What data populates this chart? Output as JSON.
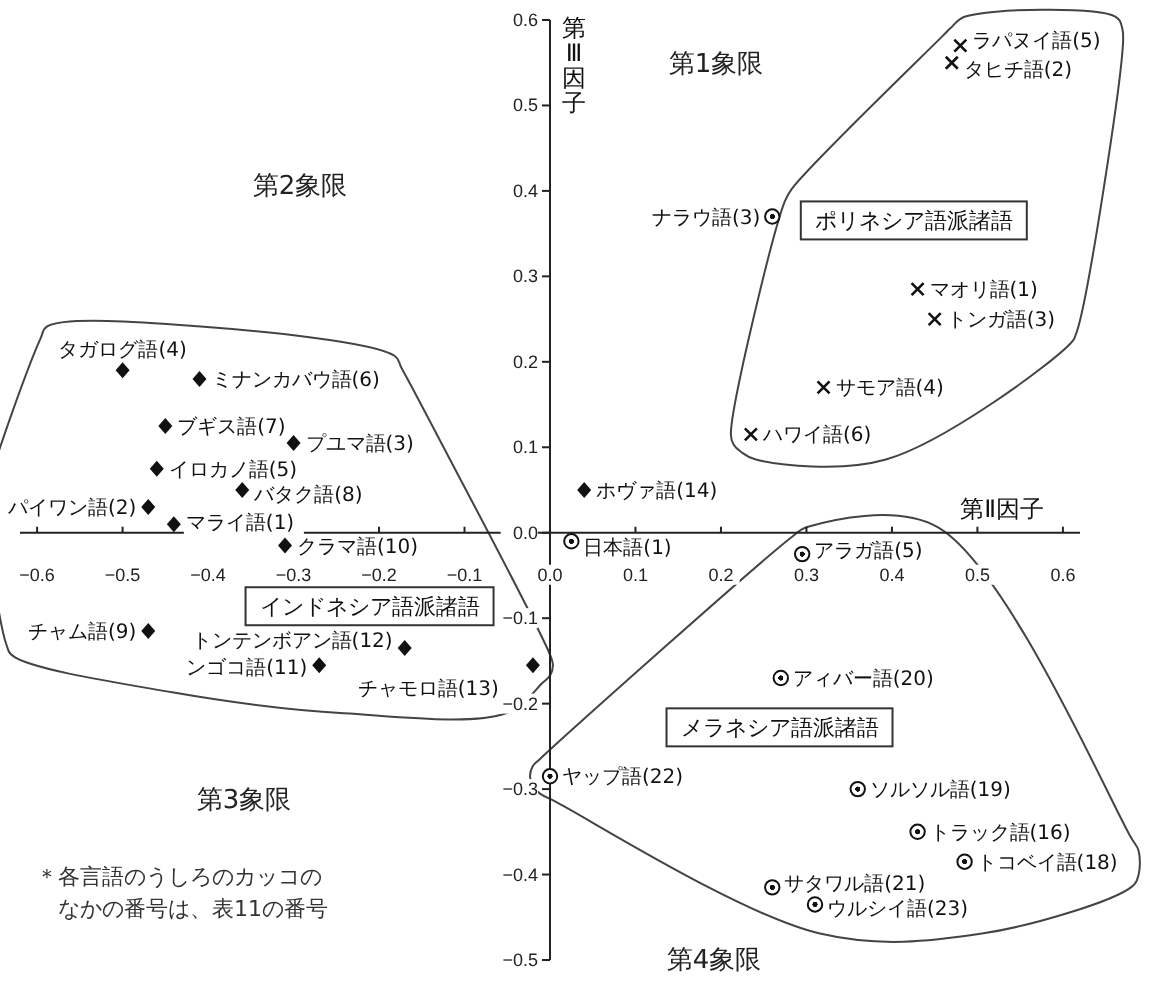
{
  "chart_data": {
    "type": "scatter",
    "xlabel": "第Ⅱ因子",
    "ylabel": "第Ⅲ因子",
    "xlim": [
      -0.62,
      0.62
    ],
    "ylim": [
      -0.5,
      0.6
    ],
    "xticks": [
      {
        "value": -0.6,
        "label": "−0.6"
      },
      {
        "value": -0.5,
        "label": "−0.5"
      },
      {
        "value": -0.4,
        "label": "−0.4"
      },
      {
        "value": -0.3,
        "label": "−0.3"
      },
      {
        "value": -0.2,
        "label": "−0.2"
      },
      {
        "value": -0.1,
        "label": "−0.1"
      },
      {
        "value": 0,
        "label": "0.0"
      },
      0.1,
      0.2,
      0.3,
      0.4,
      0.5,
      0.6
    ],
    "yticks": [
      {
        "value": -0.5,
        "label": "−0.5"
      },
      {
        "value": -0.4,
        "label": "−0.4"
      },
      {
        "value": -0.3,
        "label": "−0.3"
      },
      {
        "value": -0.2,
        "label": "−0.2"
      },
      {
        "value": -0.1,
        "label": "−0.1"
      },
      {
        "value": 0,
        "label": "0.0"
      },
      0.1,
      0.2,
      0.3,
      0.4,
      0.5,
      0.6
    ],
    "series": [
      {
        "name": "インドネシア語派諸語",
        "color": "#111111",
        "marker": "diamond",
        "x": [
          -0.5,
          -0.41,
          -0.45,
          -0.3,
          -0.46,
          -0.36,
          -0.47,
          -0.44,
          -0.31,
          -0.47,
          -0.27,
          -0.17,
          -0.02
        ],
        "values": [
          0.19,
          0.18,
          0.125,
          0.105,
          0.075,
          0.05,
          0.03,
          0.01,
          -0.015,
          -0.115,
          -0.155,
          -0.135,
          -0.155
        ]
      },
      {
        "name": "ポリネシア語派諸語",
        "color": "#111111",
        "marker": "cross",
        "x": [
          0.48,
          0.47,
          0.43,
          0.45,
          0.32,
          0.235
        ],
        "values": [
          0.57,
          0.55,
          0.285,
          0.25,
          0.17,
          0.115
        ]
      },
      {
        "name": "メラネシア語派諸語",
        "color": "#111111",
        "marker": "circle",
        "x": [
          0.295,
          0.27,
          0,
          0.36,
          0.43,
          0.485,
          0.26,
          0.31
        ],
        "values": [
          -0.025,
          -0.17,
          -0.285,
          -0.3,
          -0.35,
          -0.385,
          -0.415,
          -0.435
        ]
      },
      {
        "color": "#111111",
        "marker": "diamond",
        "x": [
          0.04
        ],
        "values": [
          0.05
        ]
      },
      {
        "color": "#111111",
        "marker": "circle",
        "x": [
          0.26,
          0.025
        ],
        "values": [
          0.37,
          -0.01
        ]
      }
    ],
    "annotations": [
      {
        "text": "タガログ語(4)",
        "x": -0.5,
        "y": 0.19
      },
      {
        "text": "ミナンカバウ語(6)",
        "x": -0.41,
        "y": 0.18
      },
      {
        "text": "ブギス語(7)",
        "x": -0.45,
        "y": 0.125
      },
      {
        "text": "プユマ語(3)",
        "x": -0.3,
        "y": 0.105
      },
      {
        "text": "イロカノ語(5)",
        "x": -0.46,
        "y": 0.075
      },
      {
        "text": "バタク語(8)",
        "x": -0.36,
        "y": 0.05
      },
      {
        "text": "パイワン語(2)",
        "x": -0.47,
        "y": 0.03
      },
      {
        "text": "マライ語(1)",
        "x": -0.44,
        "y": 0.01
      },
      {
        "text": "クラマ語(10)",
        "x": -0.31,
        "y": -0.015
      },
      {
        "text": "チャム語(9)",
        "x": -0.47,
        "y": -0.115
      },
      {
        "text": "ンゴコ語(11)",
        "x": -0.27,
        "y": -0.155
      },
      {
        "text": "トンテンボアン語(12)",
        "x": -0.17,
        "y": -0.135
      },
      {
        "text": "チャモロ語(13)",
        "x": -0.02,
        "y": -0.155
      },
      {
        "text": "ホヴァ語(14)",
        "x": 0.04,
        "y": 0.05
      },
      {
        "text": "ラパヌイ語(5)",
        "x": 0.48,
        "y": 0.57
      },
      {
        "text": "タヒチ語(2)",
        "x": 0.47,
        "y": 0.55
      },
      {
        "text": "マオリ語(1)",
        "x": 0.43,
        "y": 0.285
      },
      {
        "text": "トンガ語(3)",
        "x": 0.45,
        "y": 0.25
      },
      {
        "text": "サモア語(4)",
        "x": 0.32,
        "y": 0.17
      },
      {
        "text": "ハワイ語(6)",
        "x": 0.235,
        "y": 0.115
      },
      {
        "text": "ナラウ語(3)",
        "x": 0.26,
        "y": 0.37
      },
      {
        "text": "アラガ語(5)",
        "x": 0.295,
        "y": -0.025
      },
      {
        "text": "アィバー語(20)",
        "x": 0.27,
        "y": -0.17
      },
      {
        "text": "ヤップ語(22)",
        "x": 0,
        "y": -0.285
      },
      {
        "text": "ソルソル語(19)",
        "x": 0.36,
        "y": -0.3
      },
      {
        "text": "トラック語(16)",
        "x": 0.43,
        "y": -0.35
      },
      {
        "text": "トコベイ語(18)",
        "x": 0.485,
        "y": -0.385
      },
      {
        "text": "サタワル語(21)",
        "x": 0.26,
        "y": -0.415
      },
      {
        "text": "ウルシイ語(23)",
        "x": 0.31,
        "y": -0.435
      },
      {
        "text": "日本語(1)",
        "x": 0.025,
        "y": -0.01
      },
      "第1象限",
      "第2象限",
      "第3象限",
      "第4象限",
      "＊各言語のうしろのカッコのなかの番号は、表11の番号"
    ]
  }
}
